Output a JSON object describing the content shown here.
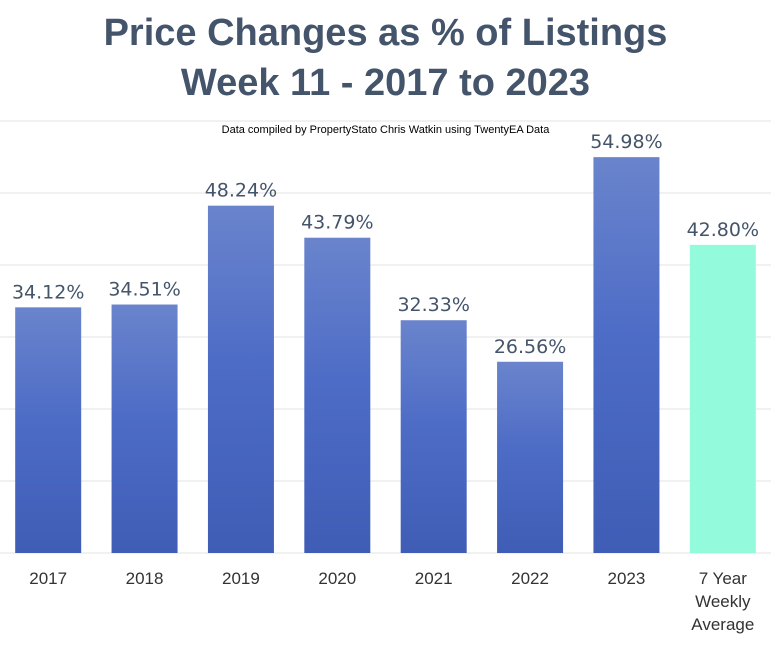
{
  "chart_data": {
    "type": "bar",
    "title_lines": [
      "Price Changes as % of Listings",
      "Week 11 - 2017 to 2023"
    ],
    "subtitle": "Data compiled by PropertyStato Chris Watkin using TwentyEA Data",
    "categories": [
      [
        "2017"
      ],
      [
        "2018"
      ],
      [
        "2019"
      ],
      [
        "2020"
      ],
      [
        "2021"
      ],
      [
        "2022"
      ],
      [
        "2023"
      ],
      [
        "7 Year",
        "Weekly",
        "Average"
      ]
    ],
    "values": [
      34.12,
      34.51,
      48.24,
      43.79,
      32.33,
      26.56,
      54.98,
      42.8
    ],
    "data_labels": [
      "34.12%",
      "34.51%",
      "48.24%",
      "43.79%",
      "32.33%",
      "26.56%",
      "54.98%",
      "42.80%"
    ],
    "ylim": [
      0,
      60
    ],
    "grid": true,
    "colors": {
      "bar": "#4a6bc4",
      "bar_light": "#6a84cc",
      "average_bar": "#93fadc",
      "grid": "#e3e3e3",
      "title": "#44546a"
    }
  }
}
